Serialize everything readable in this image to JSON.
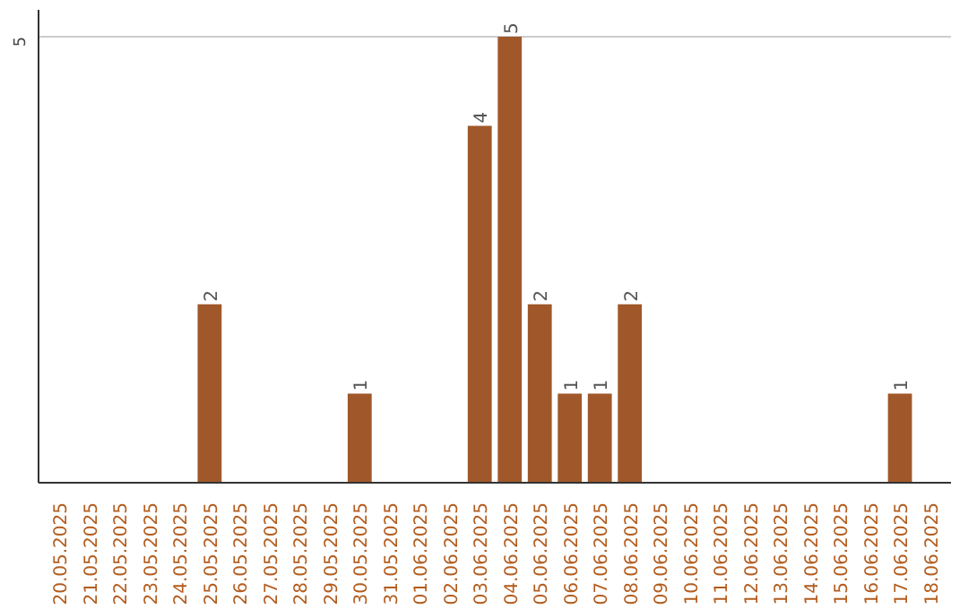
{
  "chart_data": {
    "type": "bar",
    "categories": [
      "20.05.2025",
      "21.05.2025",
      "22.05.2025",
      "23.05.2025",
      "24.05.2025",
      "25.05.2025",
      "26.05.2025",
      "27.05.2025",
      "28.05.2025",
      "29.05.2025",
      "30.05.2025",
      "31.05.2025",
      "01.06.2025",
      "02.06.2025",
      "03.06.2025",
      "04.06.2025",
      "05.06.2025",
      "06.06.2025",
      "07.06.2025",
      "08.06.2025",
      "09.06.2025",
      "10.06.2025",
      "11.06.2025",
      "12.06.2025",
      "13.06.2025",
      "14.06.2025",
      "15.06.2025",
      "16.06.2025",
      "17.06.2025",
      "18.06.2025"
    ],
    "values": [
      0,
      0,
      0,
      0,
      0,
      2,
      0,
      0,
      0,
      0,
      1,
      0,
      0,
      0,
      4,
      5,
      2,
      1,
      1,
      2,
      0,
      0,
      0,
      0,
      0,
      0,
      0,
      0,
      1,
      0
    ],
    "color": "#a0582a",
    "ylim": [
      0,
      5.3
    ],
    "yticks": [
      5
    ],
    "grid": "y",
    "value_labels": [
      null,
      null,
      null,
      null,
      null,
      "2",
      null,
      null,
      null,
      null,
      "1",
      null,
      null,
      null,
      "4",
      "5",
      "2",
      "1",
      "1",
      "2",
      null,
      null,
      null,
      null,
      null,
      null,
      null,
      null,
      "1",
      null
    ]
  }
}
